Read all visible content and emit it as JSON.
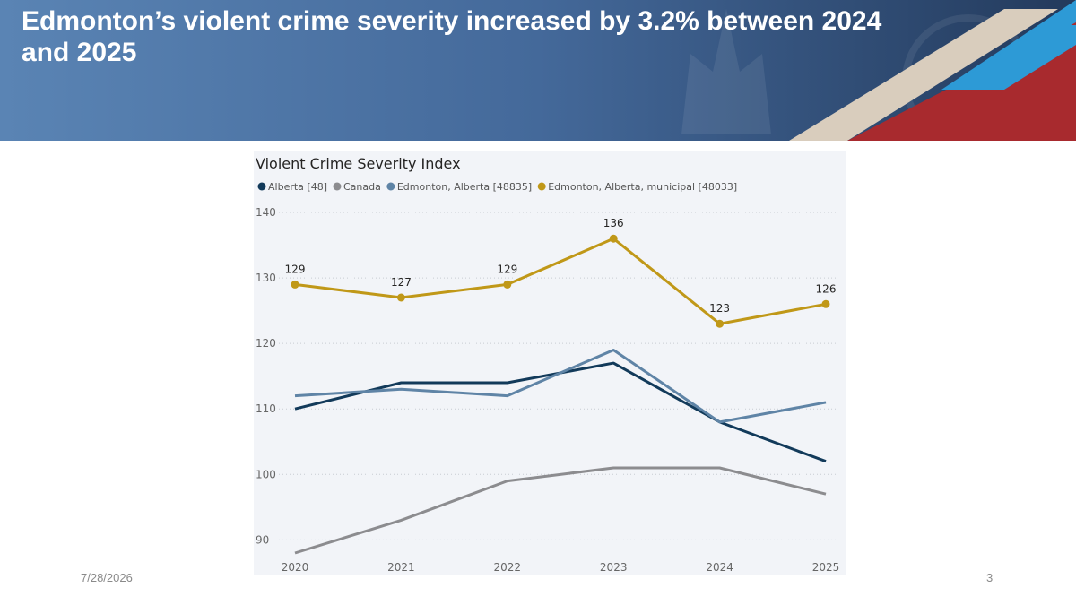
{
  "slide": {
    "title": "Edmonton’s violent crime severity increased by 3.2% between 2024 and 2025",
    "date": "7/28/2026",
    "page_number": "3"
  },
  "colors": {
    "banner": "#4e77a6",
    "banner_red": "#a82a2e",
    "banner_blue": "#2d9ad6",
    "banner_beige": "#d9cdbd",
    "panel_bg": "#f2f4f8"
  },
  "chart_data": {
    "type": "line",
    "title": "Violent Crime Severity Index",
    "categories": [
      "2020",
      "2021",
      "2022",
      "2023",
      "2024",
      "2025"
    ],
    "series": [
      {
        "name": "Alberta [48]",
        "color": "#123a5a",
        "values": [
          110,
          114,
          114,
          117,
          108,
          102
        ],
        "markers": false,
        "labels": false
      },
      {
        "name": "Canada",
        "color": "#8c8c8f",
        "values": [
          88,
          93,
          99,
          101,
          101,
          97
        ],
        "markers": false,
        "labels": false
      },
      {
        "name": "Edmonton, Alberta [48835]",
        "color": "#5f84a6",
        "values": [
          112,
          113,
          112,
          119,
          108,
          111
        ],
        "markers": false,
        "labels": false
      },
      {
        "name": "Edmonton, Alberta, municipal [48033]",
        "color": "#c09818",
        "values": [
          129,
          127,
          129,
          136,
          123,
          126
        ],
        "markers": true,
        "labels": true
      }
    ],
    "yticks": [
      90,
      100,
      110,
      120,
      130,
      140
    ],
    "ylim": [
      88,
      140
    ],
    "grid": true,
    "legend_position": "top-left"
  }
}
